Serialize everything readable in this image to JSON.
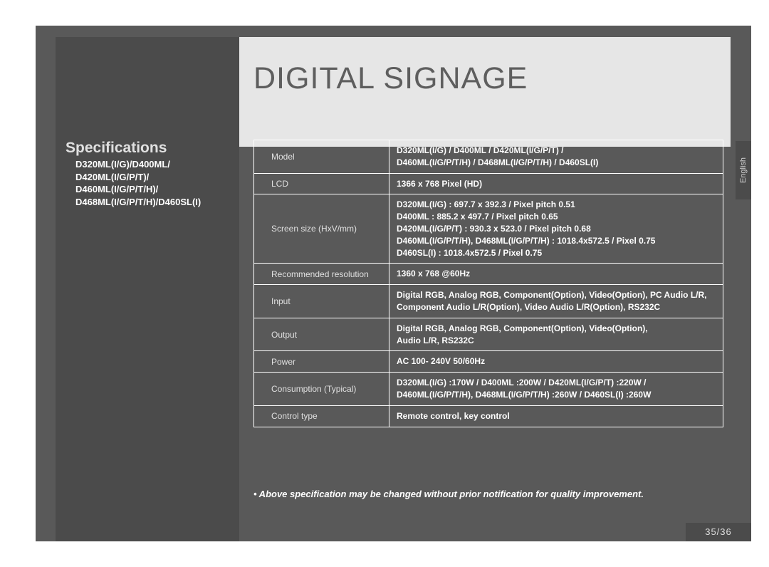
{
  "title": "DIGITAL SIGNAGE",
  "language_tab": "English",
  "page_number": "35/36",
  "sidebar": {
    "heading": "Specifications",
    "models": "D320ML(I/G)/D400ML/\nD420ML(I/G/P/T)/\nD460ML(I/G/P/T/H)/\nD468ML(I/G/P/T/H)/D460SL(I)"
  },
  "table": {
    "rows": [
      {
        "label": "Model",
        "value": "D320ML(I/G) / D400ML / D420ML(I/G/P/T) /\nD460ML(I/G/P/T/H) / D468ML(I/G/P/T/H)  / D460SL(I)"
      },
      {
        "label": "LCD",
        "value": "1366 x 768 Pixel (HD)"
      },
      {
        "label": "Screen size (HxV/mm)",
        "value": "D320ML(I/G) : 697.7 x 392.3 / Pixel pitch 0.51\nD400ML : 885.2 x 497.7 / Pixel pitch 0.65\nD420ML(I/G/P/T) : 930.3 x 523.0 / Pixel pitch 0.68\nD460ML(I/G/P/T/H), D468ML(I/G/P/T/H) : 1018.4x572.5 / Pixel 0.75\nD460SL(I) : 1018.4x572.5 / Pixel 0.75"
      },
      {
        "label": "Recommended resolution",
        "value": "1360 x 768 @60Hz"
      },
      {
        "label": "Input",
        "value": "Digital RGB, Analog RGB, Component(Option), Video(Option), PC Audio L/R,\nComponent Audio L/R(Option), Video Audio L/R(Option), RS232C"
      },
      {
        "label": "Output",
        "value": "Digital RGB, Analog RGB, Component(Option), Video(Option),\nAudio L/R, RS232C"
      },
      {
        "label": "Power",
        "value": "AC 100- 240V 50/60Hz"
      },
      {
        "label": "Consumption (Typical)",
        "value": "D320ML(I/G) :170W / D400ML :200W / D420ML(I/G/P/T) :220W /\nD460ML(I/G/P/T/H), D468ML(I/G/P/T/H) :260W / D460SL(I) :260W"
      },
      {
        "label": "Control type",
        "value": "Remote control, key control"
      }
    ]
  },
  "footnote": "• Above specification may be changed without prior notification for quality improvement.",
  "colors": {
    "page_bg": "#595959",
    "sidebar_bg": "#4b4b4b",
    "banner_bg": "#e6e6e6",
    "banner_text": "#5e5e5e",
    "text_white": "#ffffff",
    "text_light": "#e0e0e0",
    "border": "#ffffff"
  }
}
